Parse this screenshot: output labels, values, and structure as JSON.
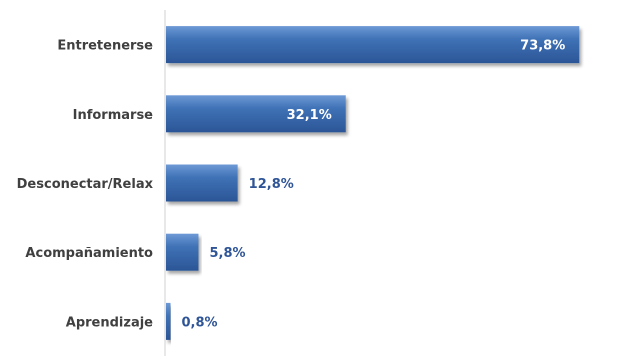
{
  "colors": {
    "bar": "#3f72b6",
    "bar_top": "#6e9ad6",
    "bar_bottom": "#2b5596",
    "value_outside": "#2f5597",
    "value_inside": "#ffffff",
    "category_text": "#404040"
  },
  "chart_data": {
    "type": "bar",
    "orientation": "horizontal",
    "title": "",
    "xlabel": "",
    "ylabel": "",
    "categories": [
      "Entretenerse",
      "Informarse",
      "Desconectar/Relax",
      "Acompañamiento",
      "Aprendizaje"
    ],
    "values": [
      73.8,
      32.1,
      12.8,
      5.8,
      0.8
    ],
    "value_labels": [
      "73,8%",
      "32,1%",
      "12,8%",
      "5,8%",
      "0,8%"
    ],
    "xlim": [
      0,
      80
    ],
    "grid": false,
    "legend": "none"
  }
}
